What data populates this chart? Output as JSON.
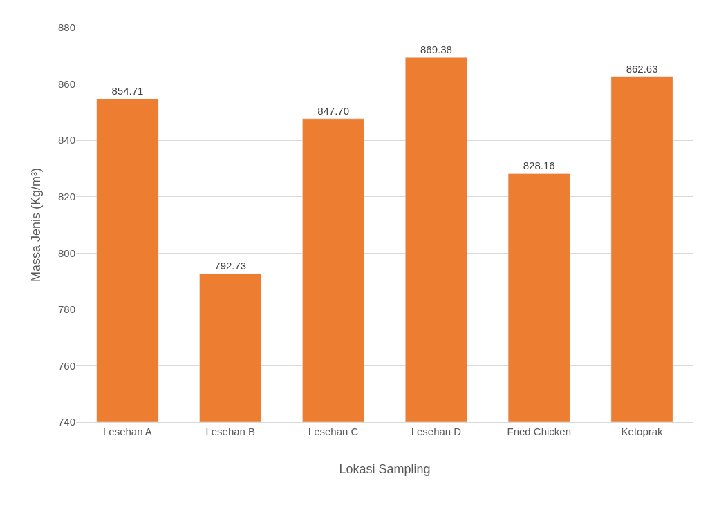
{
  "chart_data": {
    "type": "bar",
    "xlabel": "Lokasi Sampling",
    "ylabel": "Massa Jenis (Kg/m³)",
    "categories": [
      "Lesehan A",
      "Lesehan B",
      "Lesehan C",
      "Lesehan D",
      "Fried Chicken",
      "Ketoprak"
    ],
    "values": [
      854.71,
      792.73,
      847.7,
      869.38,
      828.16,
      862.63
    ],
    "value_labels": [
      "854.71",
      "792.73",
      "847.70",
      "869.38",
      "828.16",
      "862.63"
    ],
    "color": "#ed7d31",
    "ylim": [
      740,
      880
    ],
    "yticks": [
      740,
      760,
      780,
      800,
      820,
      840,
      860,
      880
    ],
    "grid": "y"
  }
}
